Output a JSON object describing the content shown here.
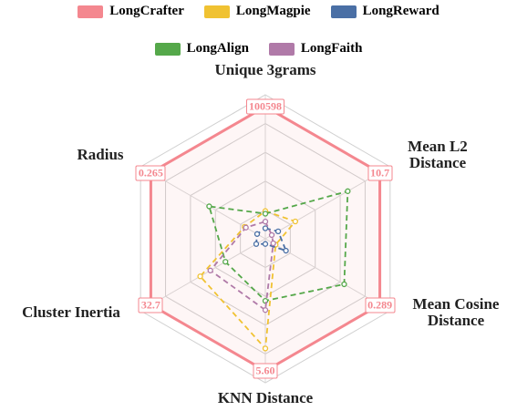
{
  "chart_data": {
    "type": "radar",
    "categories": [
      "Unique 3grams",
      "Mean L2 Distance",
      "Mean Cosine Distance",
      "KNN Distance",
      "Cluster Inertia",
      "Radius"
    ],
    "series": [
      {
        "name": "LongCrafter",
        "color": "#f4878f",
        "values": [
          100598,
          10.7,
          0.289,
          5.6,
          32.7,
          0.265
        ],
        "value_labels": [
          "100598",
          "10.7",
          "0.289",
          "5.60",
          "32.7",
          "0.265"
        ]
      },
      {
        "name": "LongMagpie",
        "color": "#f0c232",
        "values": [
          21100,
          2.8,
          0.026,
          4.65,
          18.6,
          0.048
        ]
      },
      {
        "name": "LongReward",
        "color": "#4a6fa5",
        "values": [
          8000,
          1.2,
          0.052,
          0.22,
          2.6,
          0.019
        ]
      },
      {
        "name": "LongAlign",
        "color": "#55a84a",
        "values": [
          19100,
          7.7,
          0.199,
          2.63,
          11.4,
          0.13
        ]
      },
      {
        "name": "LongFaith",
        "color": "#b07aa8",
        "values": [
          13100,
          0.6,
          0.02,
          3.02,
          15.7,
          0.045
        ]
      }
    ]
  }
}
